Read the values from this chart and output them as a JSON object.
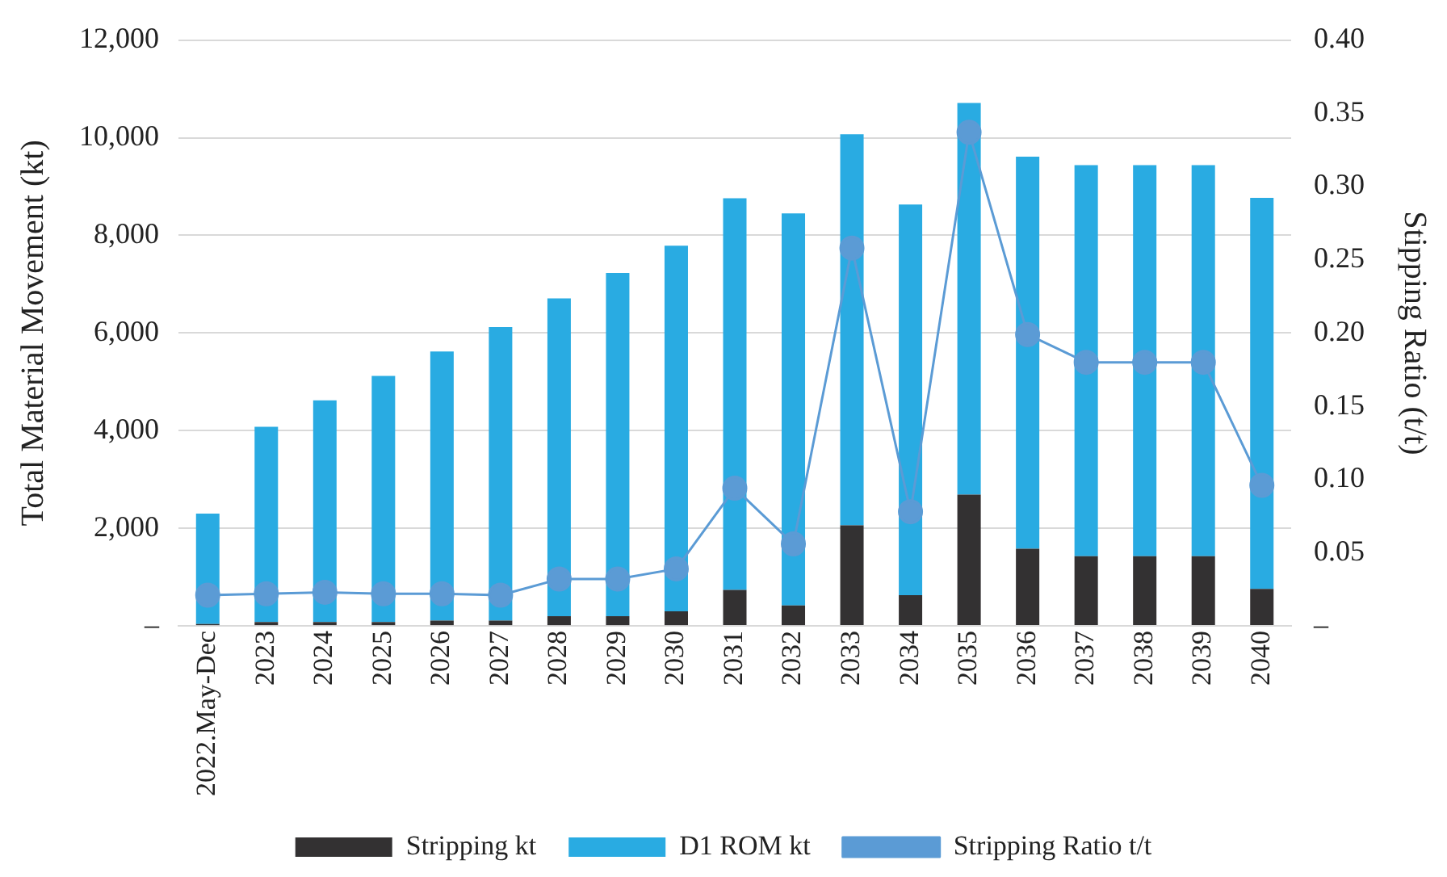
{
  "chart_data": {
    "type": "bar",
    "stacked": true,
    "categories": [
      "2022.May-Dec",
      "2023",
      "2024",
      "2025",
      "2026",
      "2027",
      "2028",
      "2029",
      "2030",
      "2031",
      "2032",
      "2033",
      "2034",
      "2035",
      "2036",
      "2037",
      "2038",
      "2039",
      "2040"
    ],
    "series": [
      {
        "name": "Stripping kt",
        "color": "#333132",
        "values": [
          40,
          80,
          80,
          80,
          110,
          110,
          200,
          200,
          300,
          740,
          420,
          2060,
          630,
          2690,
          1580,
          1430,
          1430,
          1430,
          760
        ]
      },
      {
        "name": "D1 ROM kt",
        "color": "#29abe2",
        "values": [
          2260,
          4000,
          4540,
          5040,
          5510,
          6010,
          6510,
          7030,
          7490,
          8020,
          8030,
          8010,
          8000,
          8020,
          8030,
          8010,
          8010,
          8010,
          8010
        ]
      },
      {
        "name": "Stripping Ratio t/t",
        "type": "line",
        "axis": "y2",
        "color": "#5b9bd5",
        "values": [
          0.021,
          0.022,
          0.023,
          0.022,
          0.022,
          0.021,
          0.032,
          0.032,
          0.039,
          0.094,
          0.056,
          0.258,
          0.078,
          0.337,
          0.199,
          0.18,
          0.18,
          0.18,
          0.096
        ]
      }
    ],
    "ylabel": "Total Material Movement (kt)",
    "y2label": "Stipping Ratio (t/t)",
    "ylim": [
      0,
      12000
    ],
    "yticks": [
      {
        "value": 0,
        "label": "–"
      },
      {
        "value": 2000,
        "label": "2,000"
      },
      {
        "value": 4000,
        "label": "4,000"
      },
      {
        "value": 6000,
        "label": "6,000"
      },
      {
        "value": 8000,
        "label": "8,000"
      },
      {
        "value": 10000,
        "label": "10,000"
      },
      {
        "value": 12000,
        "label": "12,000"
      }
    ],
    "y2lim": [
      0,
      0.4
    ],
    "y2ticks": [
      {
        "value": 0,
        "label": "–"
      },
      {
        "value": 0.05,
        "label": "0.05"
      },
      {
        "value": 0.1,
        "label": "0.10"
      },
      {
        "value": 0.15,
        "label": "0.15"
      },
      {
        "value": 0.2,
        "label": "0.20"
      },
      {
        "value": 0.25,
        "label": "0.25"
      },
      {
        "value": 0.3,
        "label": "0.30"
      },
      {
        "value": 0.35,
        "label": "0.35"
      },
      {
        "value": 0.4,
        "label": "0.40"
      }
    ],
    "grid": "y",
    "legend": "bottom",
    "marker": "circle"
  }
}
